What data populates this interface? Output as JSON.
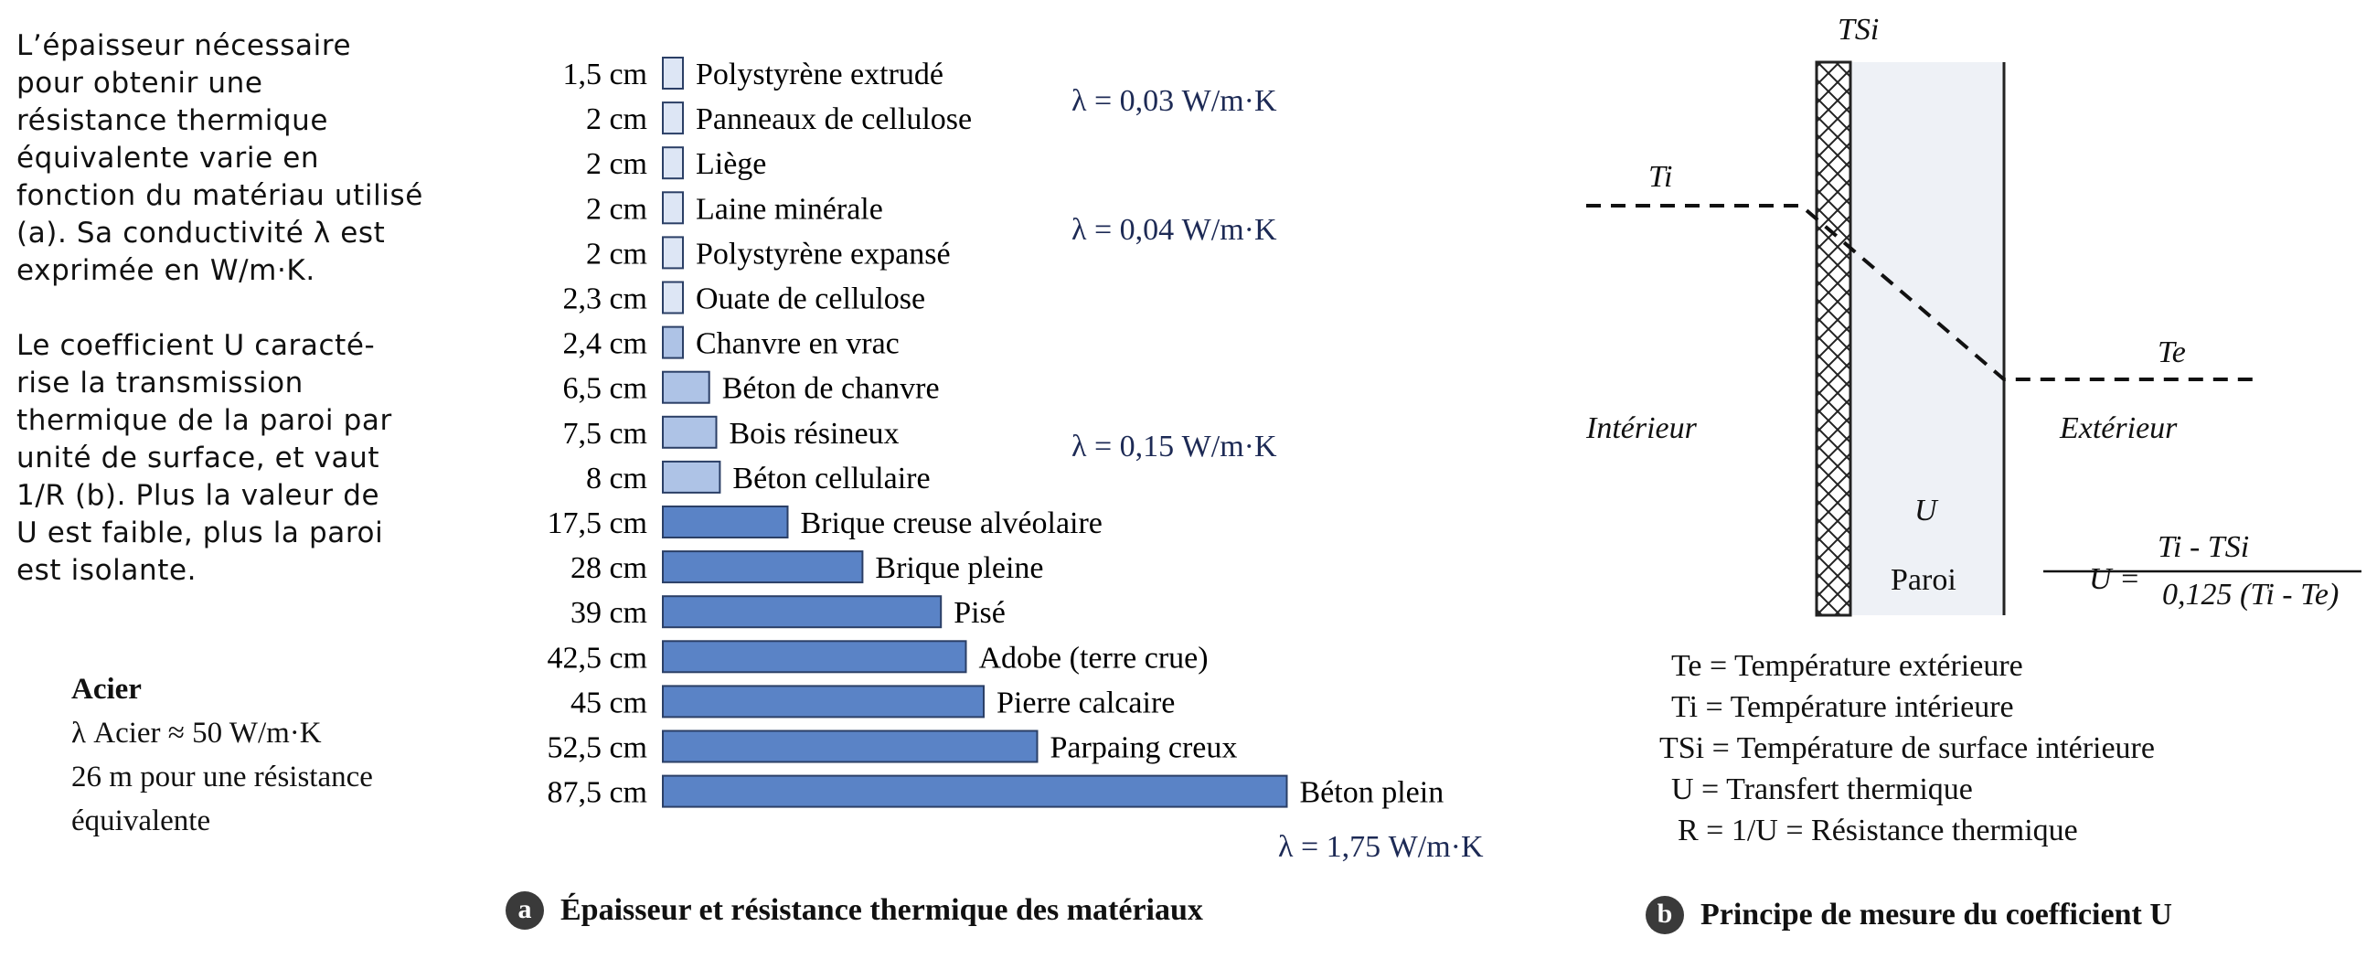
{
  "intro": {
    "p1_lines": [
      "L’épaisseur nécessaire",
      "pour obtenir une",
      "résistance thermique",
      "équivalente varie en",
      "fonction du matériau utilisé",
      "(a). Sa conductivité λ est",
      "exprimée en W/m·K."
    ],
    "p2_lines": [
      "Le coefficient U caracté-",
      "rise la transmission",
      "thermique de la paroi par",
      "unité de surface, et vaut",
      "1/R (b). Plus la valeur de",
      "U est faible, plus la paroi",
      "est isolante."
    ]
  },
  "steel": {
    "title": "Acier",
    "lambda_line": "λ Acier ≈ 50 W/m·K",
    "line2": "26 m pour une résistance",
    "line3": "équivalente"
  },
  "lambda_notes": {
    "n1": "λ = 0,03 W/m·K",
    "n2": "λ = 0,04 W/m·K",
    "n3": "λ = 0,15 W/m·K",
    "n4": "λ = 1,75 W/m·K"
  },
  "colors": {
    "bar_light": "#dde6f5",
    "bar_mid": "#aec3e6",
    "bar_dark": "#5a83c6",
    "bar_stroke": "#2b3f66",
    "lambda_text": "#1d2a55",
    "wall_fill": "#eef1f6"
  },
  "chart_data": {
    "type": "bar",
    "orientation": "horizontal",
    "unit": "cm",
    "categories": [
      "Polystyrène extrudé",
      "Panneaux de cellulose",
      "Liège",
      "Laine minérale",
      "Polystyrène expansé",
      "Ouate de cellulose",
      "Chanvre en vrac",
      "Béton de chanvre",
      "Bois résineux",
      "Béton cellulaire",
      "Brique creuse alvéolaire",
      "Brique pleine",
      "Pisé",
      "Adobe (terre crue)",
      "Pierre calcaire",
      "Parpaing creux",
      "Béton plein"
    ],
    "values": [
      1.5,
      2,
      2,
      2,
      2,
      2.3,
      2.4,
      6.5,
      7.5,
      8,
      17.5,
      28,
      39,
      42.5,
      45,
      52.5,
      87.5
    ],
    "value_labels": [
      "1,5 cm",
      "2 cm",
      "2 cm",
      "2 cm",
      "2 cm",
      "2,3 cm",
      "2,4 cm",
      "6,5 cm",
      "7,5 cm",
      "8 cm",
      "17,5 cm",
      "28 cm",
      "39 cm",
      "42,5 cm",
      "45 cm",
      "52,5 cm",
      "87,5 cm"
    ],
    "title": "Épaisseur et résistance thermique des matériaux",
    "xlabel": "",
    "ylabel": "",
    "grid": false
  },
  "captions": {
    "a_badge": "a",
    "a_text": "Épaisseur et résistance thermique des matériaux",
    "b_badge": "b",
    "b_text": "Principe de mesure du coefficient U"
  },
  "diagram": {
    "tsi": "TSi",
    "ti": "Ti",
    "te": "Te",
    "interior": "Intérieur",
    "exterior": "Extérieur",
    "u": "U",
    "wall": "Paroi",
    "formula_lhs": "U =",
    "formula_num": "Ti - TSi",
    "formula_den": "0,125 (Ti - Te)",
    "legend": [
      "Te = Température extérieure",
      "Ti = Température intérieure",
      "TSi = Température de surface intérieure",
      "U = Transfert thermique",
      "R = 1/U = Résistance thermique"
    ]
  }
}
